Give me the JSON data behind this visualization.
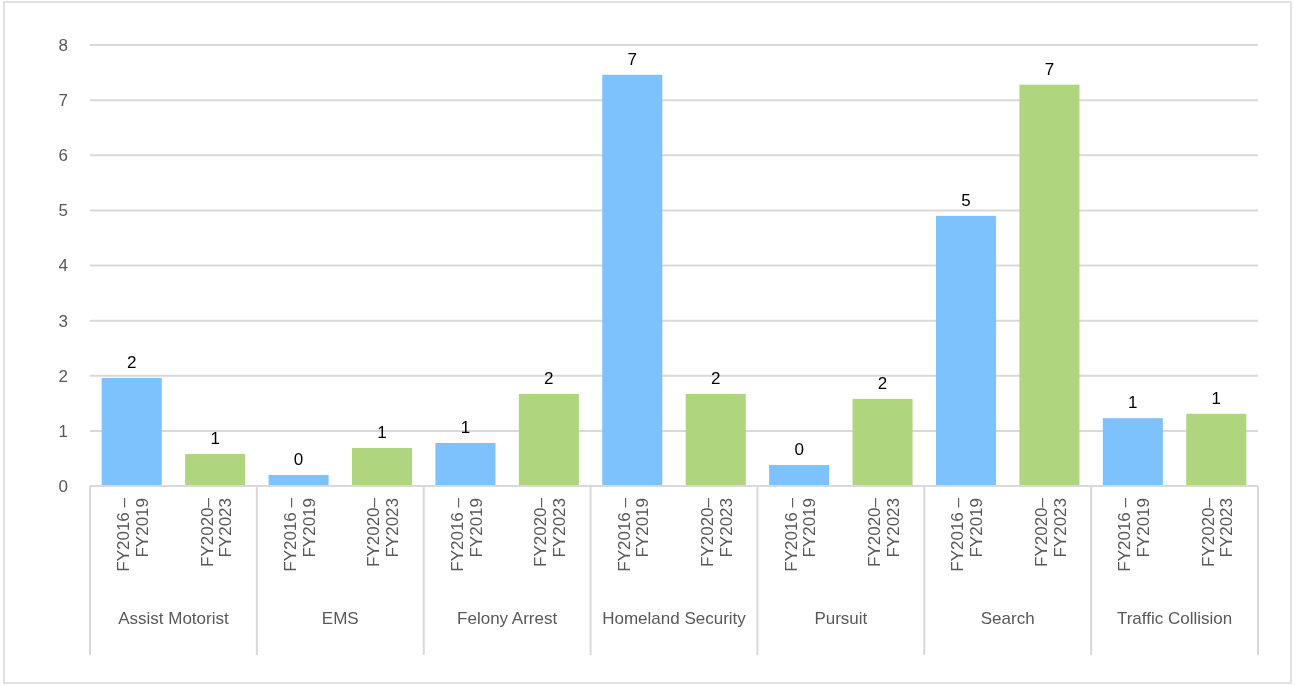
{
  "chart_data": {
    "type": "bar",
    "categories": [
      "Assist Motorist",
      "EMS",
      "Felony Arrest",
      "Homeland Security",
      "Pursuit",
      "Search",
      "Traffic Collision"
    ],
    "series": [
      {
        "name": "FY2016 – FY2019",
        "color": "#7dc2fd",
        "values": [
          1.96,
          0.2,
          0.78,
          7.46,
          0.38,
          4.9,
          1.23
        ],
        "value_labels": [
          "2",
          "0",
          "1",
          "7",
          "0",
          "5",
          "1"
        ]
      },
      {
        "name": "FY2020– FY2023",
        "color": "#afd67e",
        "values": [
          0.58,
          0.69,
          1.67,
          1.67,
          1.58,
          7.28,
          1.31
        ],
        "value_labels": [
          "1",
          "1",
          "2",
          "2",
          "2",
          "7",
          "1"
        ]
      }
    ],
    "ylim": [
      0,
      8
    ],
    "yticks": [
      0,
      1,
      2,
      3,
      4,
      5,
      6,
      7,
      8
    ],
    "grid": "y",
    "legend": false
  }
}
